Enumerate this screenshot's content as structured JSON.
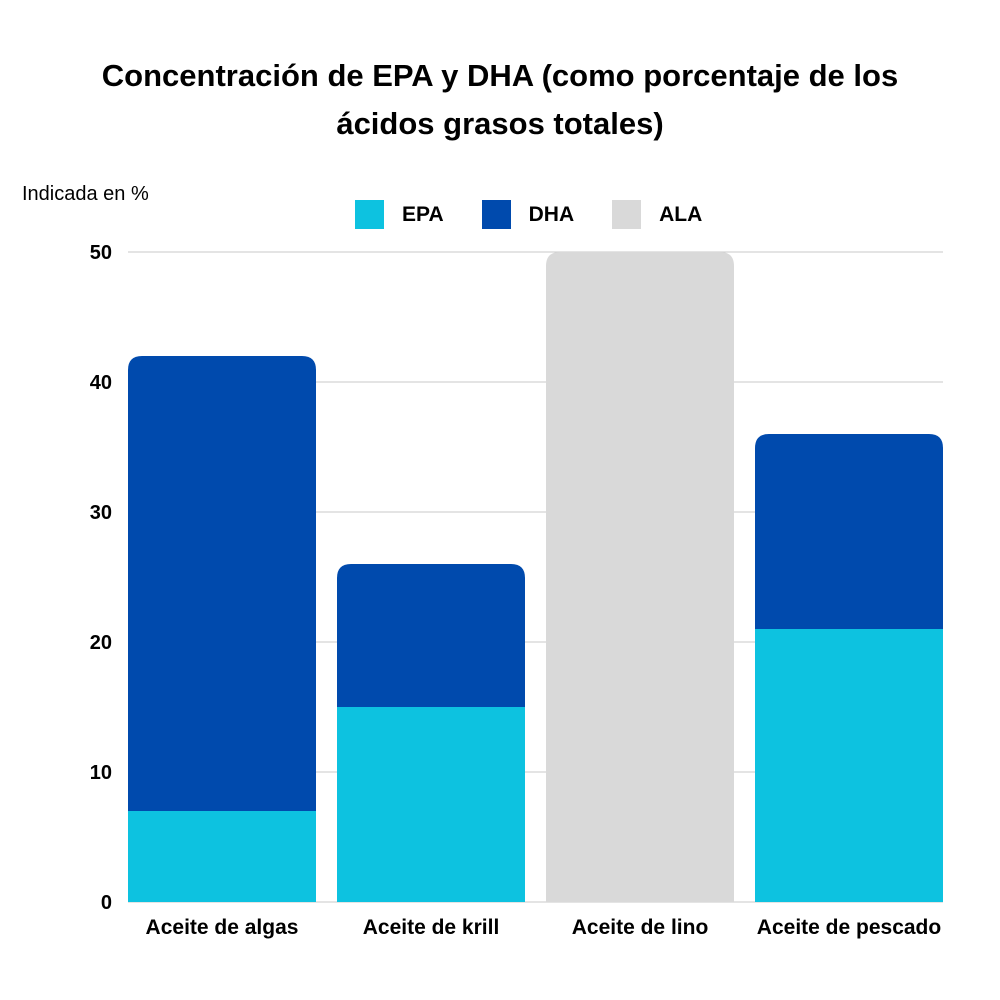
{
  "chart_data": {
    "type": "bar",
    "stacked": true,
    "title": "Concentración de EPA y DHA (como porcentaje de los ácidos grasos totales)",
    "title_lines": [
      "Concentración de EPA y DHA (como porcentaje de los",
      "ácidos grasos totales)"
    ],
    "xlabel": "",
    "ylabel": "Indicada en %",
    "ylim": [
      0,
      50
    ],
    "yticks": [
      0,
      10,
      20,
      30,
      40,
      50
    ],
    "grid": true,
    "legend_position": "top-center",
    "categories": [
      "Aceite de algas",
      "Aceite de krill",
      "Aceite de lino",
      "Aceite de pescado"
    ],
    "series": [
      {
        "name": "EPA",
        "color": "#0DC2E0",
        "values": [
          7,
          15,
          0,
          21
        ]
      },
      {
        "name": "DHA",
        "color": "#004AAD",
        "values": [
          35,
          11,
          0,
          15
        ]
      },
      {
        "name": "ALA",
        "color": "#D9D9D9",
        "values": [
          0,
          0,
          50,
          0
        ]
      }
    ]
  }
}
